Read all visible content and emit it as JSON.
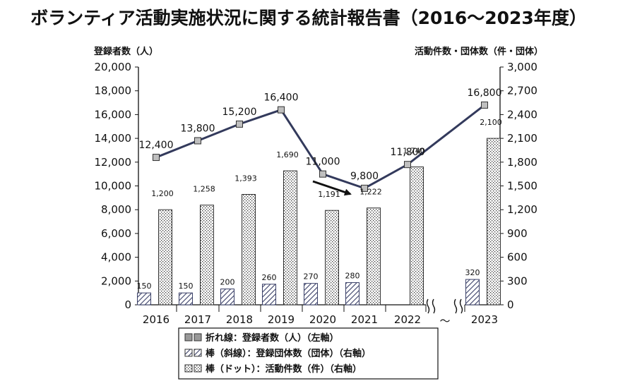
{
  "chart_data": {
    "type": "bar",
    "title": "ボランティア活動実施状況に関する統計報告書（2016〜2023年度）",
    "ylabel_left": "登録者数（人）",
    "ylabel_right": "活動件数・団体数（件・団体）",
    "categories": [
      "2016",
      "2017",
      "2018",
      "2019",
      "2020",
      "2021",
      "2022",
      "2023"
    ],
    "gap_label": "〜",
    "y_left": {
      "min": 0,
      "max": 20000,
      "ticks": [
        "0",
        "2,000",
        "4,000",
        "6,000",
        "8,000",
        "10,000",
        "12,000",
        "14,000",
        "16,000",
        "18,000",
        "20,000"
      ]
    },
    "y_right": {
      "min": 0,
      "max": 3000,
      "ticks": [
        "0",
        "300",
        "600",
        "900",
        "1,200",
        "1,500",
        "1,800",
        "2,100",
        "2,400",
        "2,700",
        "3,000"
      ]
    },
    "series": [
      {
        "name": "折れ線：登録者数（人）（左軸）",
        "kind": "line",
        "axis": "left",
        "color": "#333a5c",
        "x": [
          "2016",
          "2017",
          "2018",
          "2019",
          "2020",
          "2021",
          "2022",
          "2023"
        ],
        "values": [
          12400,
          13800,
          15200,
          16400,
          11000,
          9800,
          11800,
          16800
        ],
        "labels": [
          "12,400",
          "13,800",
          "15,200",
          "16,400",
          "11,000",
          "9,800",
          "11,800",
          "16,800"
        ]
      },
      {
        "name": "棒（斜線）：登録団体数（団体）（右軸）",
        "kind": "bar",
        "pattern": "hatch",
        "axis": "right",
        "x": [
          "2016",
          "2017",
          "2018",
          "2019",
          "2020",
          "2021",
          "2023"
        ],
        "values": [
          150,
          150,
          200,
          260,
          270,
          280,
          320
        ],
        "labels": [
          "150",
          "150",
          "200",
          "260",
          "270",
          "280",
          "320"
        ]
      },
      {
        "name": "棒（ドット）：活動件数（件）（右軸）",
        "kind": "bar",
        "pattern": "dots",
        "axis": "right",
        "x": [
          "2016",
          "2017",
          "2018",
          "2019",
          "2020",
          "2021",
          "2022",
          "2023"
        ],
        "values": [
          1200,
          1258,
          1393,
          1690,
          1191,
          1222,
          1740,
          2100
        ],
        "labels": [
          "1,200",
          "1,258",
          "1,393",
          "1,690",
          "1,191",
          "1,222",
          "1,740",
          "2,100"
        ]
      }
    ],
    "legend": {
      "position": "bottom",
      "items": [
        "折れ線：登録者数（人）（左軸）",
        "棒（斜線）：登録団体数（団体）（右軸）",
        "棒（ドット）：活動件数（件）（右軸）"
      ]
    },
    "annotation": {
      "type": "arrow",
      "from": "2020",
      "to": "2021"
    },
    "grid": false
  }
}
